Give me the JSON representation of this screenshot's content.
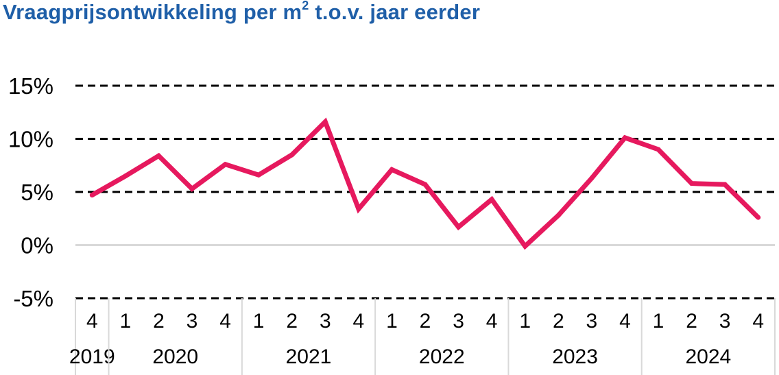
{
  "chart_data": {
    "type": "line",
    "title": "Vraagprijsontwikkeling per m",
    "title_superscript": "2",
    "title_suffix": " t.o.v. jaar eerder",
    "xlabel": "",
    "ylabel": "",
    "ylim": [
      -5,
      15
    ],
    "ytick_values": [
      -5,
      0,
      5,
      10,
      15
    ],
    "ytick_labels": [
      "-5%",
      "0%",
      "5%",
      "10%",
      "15%"
    ],
    "grid": "dashed horizontal",
    "line_color": "#e6195e",
    "title_color": "#1f5fa8",
    "x": [
      "4",
      "1",
      "2",
      "3",
      "4",
      "1",
      "2",
      "3",
      "4",
      "1",
      "2",
      "3",
      "4",
      "1",
      "2",
      "3",
      "4",
      "1",
      "2",
      "3",
      "4"
    ],
    "years": [
      {
        "label": "2019",
        "quarters": 1
      },
      {
        "label": "2020",
        "quarters": 4
      },
      {
        "label": "2021",
        "quarters": 4
      },
      {
        "label": "2022",
        "quarters": 4
      },
      {
        "label": "2023",
        "quarters": 4
      },
      {
        "label": "2024",
        "quarters": 4
      }
    ],
    "series": [
      {
        "values": [
          4.7,
          6.5,
          8.4,
          5.3,
          7.6,
          6.6,
          8.5,
          11.6,
          3.4,
          7.1,
          5.7,
          1.7,
          4.3,
          -0.1,
          2.8,
          6.3,
          10.1,
          9.0,
          5.8,
          5.7,
          2.6
        ]
      }
    ]
  }
}
